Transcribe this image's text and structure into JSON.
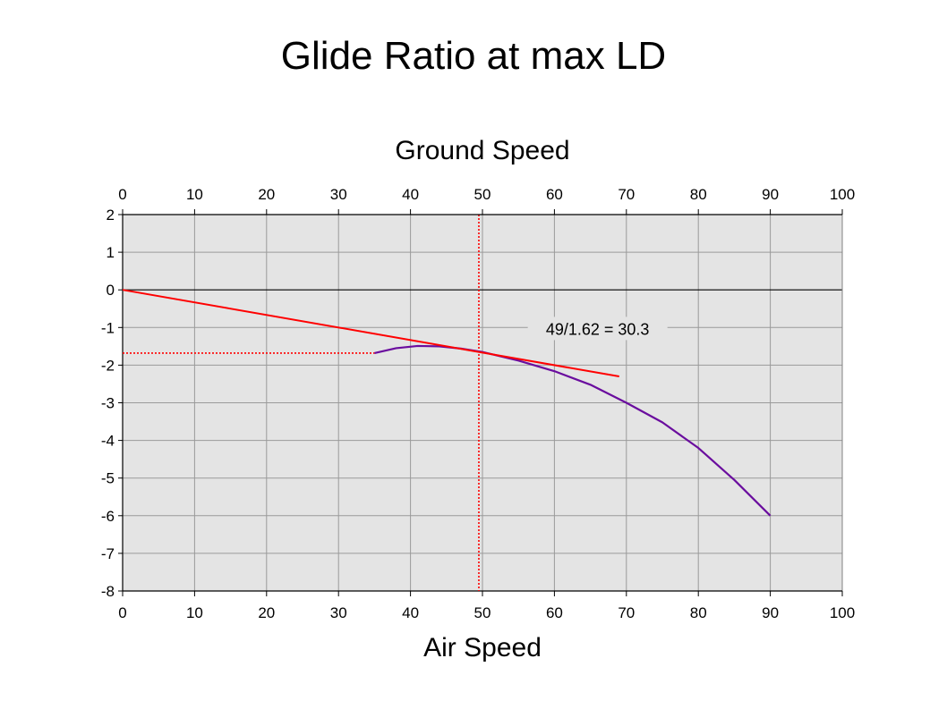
{
  "slide": {
    "title": "Glide Ratio at max LD"
  },
  "chart_data": {
    "type": "line",
    "title": "",
    "xlabel": "Air Speed",
    "x2label": "Ground Speed",
    "ylabel": "",
    "xlim": [
      0,
      100
    ],
    "ylim": [
      -8,
      2
    ],
    "xticks": [
      0,
      10,
      20,
      30,
      40,
      50,
      60,
      70,
      80,
      90,
      100
    ],
    "yticks": [
      2,
      1,
      0,
      -1,
      -2,
      -3,
      -4,
      -5,
      -6,
      -7,
      -8
    ],
    "xtick_labels": [
      "0",
      "10",
      "20",
      "30",
      "40",
      "50",
      "60",
      "70",
      "80",
      "90",
      "100"
    ],
    "ytick_labels": [
      "2",
      "1",
      "0",
      "-1",
      "-2",
      "-3",
      "-4",
      "-5",
      "-6",
      "-7",
      "-8"
    ],
    "grid": true,
    "colors": {
      "plot_bg": "#e4e4e4",
      "grid": "#9a9a9a",
      "polar": "#6a0d9e",
      "tangent": "#ff0000"
    },
    "series": [
      {
        "kind": "polar",
        "x": [
          35,
          38,
          41,
          44,
          47,
          50,
          55,
          60,
          65,
          70,
          75,
          80,
          85,
          90
        ],
        "y": [
          -1.68,
          -1.55,
          -1.49,
          -1.5,
          -1.56,
          -1.65,
          -1.88,
          -2.16,
          -2.52,
          -3.0,
          -3.52,
          -4.2,
          -5.05,
          -6.0
        ]
      },
      {
        "kind": "tangent",
        "x": [
          0,
          69
        ],
        "y": [
          0,
          -2.3
        ]
      }
    ],
    "reference_lines": {
      "vertical_x": 49.5,
      "horizontal_y": -1.68,
      "horizontal_x_start": 0,
      "horizontal_x_end": 35
    },
    "annotation": {
      "text": "49/1.62 = 30.3",
      "x": 66,
      "y": -1.05
    }
  }
}
